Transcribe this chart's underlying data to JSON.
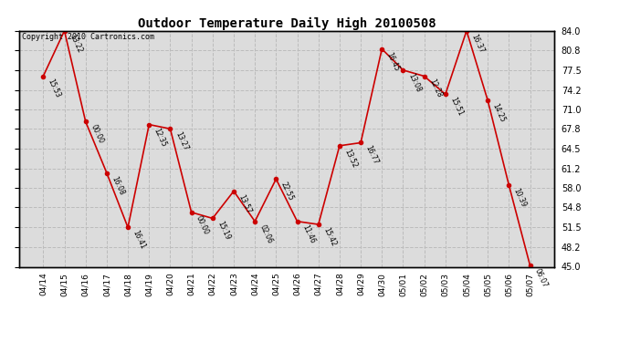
{
  "title": "Outdoor Temperature Daily High 20100508",
  "copyright_text": "Copyright 2010 Cartronics.com",
  "dates": [
    "04/14",
    "04/15",
    "04/16",
    "04/17",
    "04/18",
    "04/19",
    "04/20",
    "04/21",
    "04/22",
    "04/23",
    "04/24",
    "04/25",
    "04/26",
    "04/27",
    "04/28",
    "04/29",
    "04/30",
    "05/01",
    "05/02",
    "05/03",
    "05/04",
    "05/05",
    "05/06",
    "05/07"
  ],
  "values": [
    76.5,
    84.0,
    69.0,
    60.5,
    51.5,
    68.5,
    67.8,
    54.0,
    53.0,
    57.5,
    52.5,
    59.5,
    52.5,
    52.0,
    65.0,
    65.5,
    81.0,
    77.5,
    76.5,
    73.5,
    84.0,
    72.5,
    58.5,
    45.2
  ],
  "time_labels": [
    "15:53",
    "13:22",
    "00:00",
    "16:08",
    "16:41",
    "12:35",
    "13:27",
    "00:00",
    "15:19",
    "13:57",
    "02:06",
    "22:55",
    "11:46",
    "15:42",
    "13:52",
    "16:77",
    "16:45",
    "13:08",
    "12:28",
    "15:51",
    "16:37",
    "14:25",
    "10:39",
    "06:07"
  ],
  "line_color": "#cc0000",
  "marker_color": "#cc0000",
  "bg_color": "#dcdcdc",
  "grid_color": "#bbbbbb",
  "ylim_min": 45.0,
  "ylim_max": 84.0,
  "yticks": [
    45.0,
    48.2,
    51.5,
    54.8,
    58.0,
    61.2,
    64.5,
    67.8,
    71.0,
    74.2,
    77.5,
    80.8,
    84.0
  ],
  "figwidth": 6.9,
  "figheight": 3.75,
  "dpi": 100
}
